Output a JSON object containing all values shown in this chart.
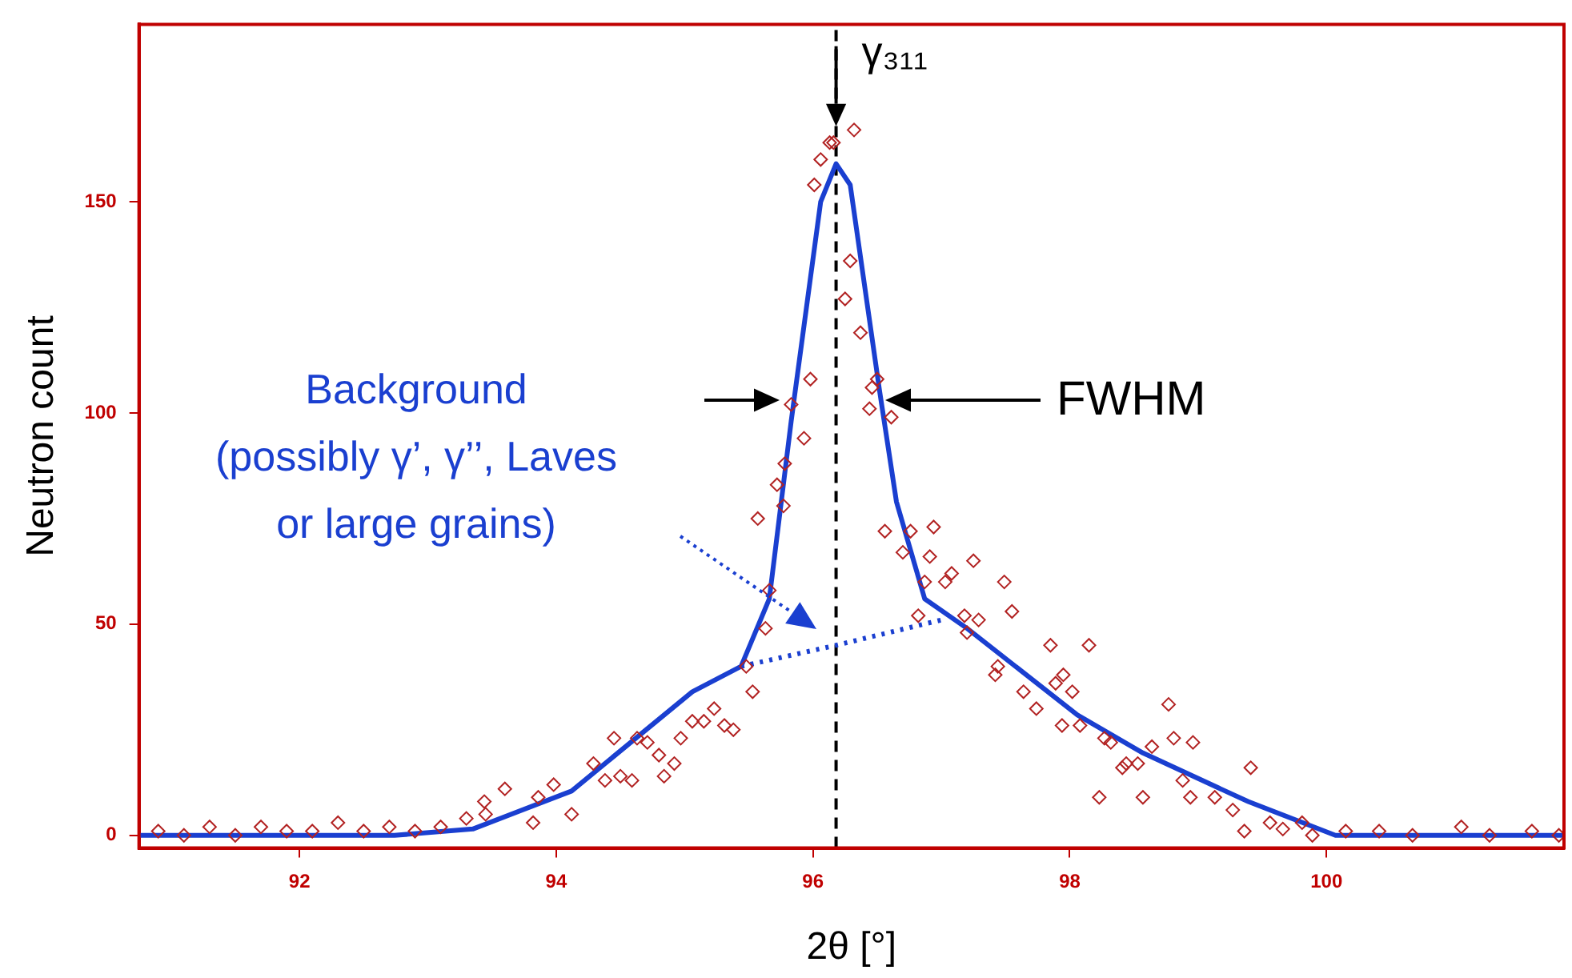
{
  "chart_data": {
    "type": "scatter",
    "xlabel": "2θ [°]",
    "ylabel": "Neutron count",
    "xlim": [
      90.75,
      101.85
    ],
    "ylim": [
      -3,
      192
    ],
    "xticks": [
      92,
      94,
      96,
      98,
      100
    ],
    "yticks": [
      0,
      50,
      100,
      150
    ],
    "grid": false,
    "legend": false,
    "series": [
      {
        "marker": "diamond",
        "color": "#b22222",
        "x": [
          90.9,
          91.1,
          91.3,
          91.5,
          91.7,
          91.9,
          92.1,
          92.3,
          92.5,
          92.7,
          92.9,
          93.1,
          93.3,
          93.44,
          93.45,
          93.6,
          93.82,
          93.86,
          93.98,
          94.12,
          94.29,
          94.38,
          94.45,
          94.5,
          94.59,
          94.63,
          94.71,
          94.8,
          94.84,
          94.92,
          94.97,
          95.06,
          95.15,
          95.23,
          95.31,
          95.38,
          95.48,
          95.53,
          95.57,
          95.63,
          95.66,
          95.72,
          95.77,
          95.78,
          95.83,
          95.93,
          95.98,
          96.01,
          96.06,
          96.13,
          96.16,
          96.25,
          96.29,
          96.32,
          96.37,
          96.44,
          96.46,
          96.5,
          96.56,
          96.61,
          96.7,
          96.76,
          96.82,
          96.87,
          96.91,
          96.94,
          97.03,
          97.08,
          97.18,
          97.2,
          97.25,
          97.29,
          97.42,
          97.44,
          97.49,
          97.55,
          97.64,
          97.74,
          97.85,
          97.89,
          97.94,
          97.95,
          98.02,
          98.08,
          98.15,
          98.23,
          98.27,
          98.32,
          98.41,
          98.44,
          98.53,
          98.57,
          98.64,
          98.77,
          98.81,
          98.88,
          98.94,
          98.96,
          99.13,
          99.27,
          99.36,
          99.41,
          99.56,
          99.66,
          99.81,
          99.89,
          100.15,
          100.41,
          100.67,
          101.05,
          101.27,
          101.6,
          101.81
        ],
        "values": [
          1,
          0,
          2,
          0,
          2,
          1,
          1,
          3,
          1,
          2,
          1,
          2,
          4,
          8,
          5,
          11,
          3,
          9,
          12,
          5,
          17,
          13,
          23,
          14,
          13,
          23,
          22,
          19,
          14,
          17,
          23,
          27,
          27,
          30,
          26,
          25,
          40,
          34,
          75,
          49,
          58,
          83,
          78,
          88,
          102,
          94,
          108,
          154,
          160,
          164,
          164,
          127,
          136,
          167,
          119,
          101,
          106,
          108,
          72,
          99,
          67,
          72,
          52,
          60,
          66,
          73,
          60,
          62,
          52,
          48,
          65,
          51,
          38,
          40,
          60,
          53,
          34,
          30,
          45,
          36,
          26,
          38,
          34,
          26,
          45,
          9,
          23,
          22,
          16,
          17,
          17,
          9,
          21,
          31,
          23,
          13,
          9,
          22,
          9,
          6,
          1,
          16,
          3,
          1.5,
          3,
          0,
          1,
          1,
          0,
          2,
          0,
          1,
          0
        ]
      },
      {
        "type": "line",
        "marker": "none",
        "line_style": "solid",
        "color": "#1a3fd0",
        "x": [
          90.75,
          92.74,
          93.35,
          94.12,
          95.06,
          95.44,
          95.66,
          95.83,
          96.06,
          96.18,
          96.29,
          96.52,
          96.65,
          96.87,
          97.2,
          98.06,
          98.57,
          99.39,
          100.07,
          101.85
        ],
        "values": [
          0,
          0,
          1.5,
          10.5,
          34,
          40,
          56,
          98,
          150,
          159,
          154,
          105,
          79,
          56,
          49,
          28.5,
          19.5,
          8,
          0,
          0
        ]
      },
      {
        "type": "line",
        "marker": "none",
        "line_style": "dotted",
        "color": "#1a3fd0",
        "x": [
          95.44,
          96.18,
          97.0
        ],
        "values": [
          40,
          45,
          51
        ]
      }
    ],
    "ref_lines": [
      {
        "axis": "x",
        "value": 96.18,
        "color": "#000000",
        "line_style": "dashed"
      }
    ],
    "annotations": [
      {
        "text": "γ₃₁₁",
        "x": 96.18,
        "y": 180
      },
      "FWHM",
      "Background\n(possibly γ’, γ’’, Laves\nor large grains)"
    ]
  }
}
